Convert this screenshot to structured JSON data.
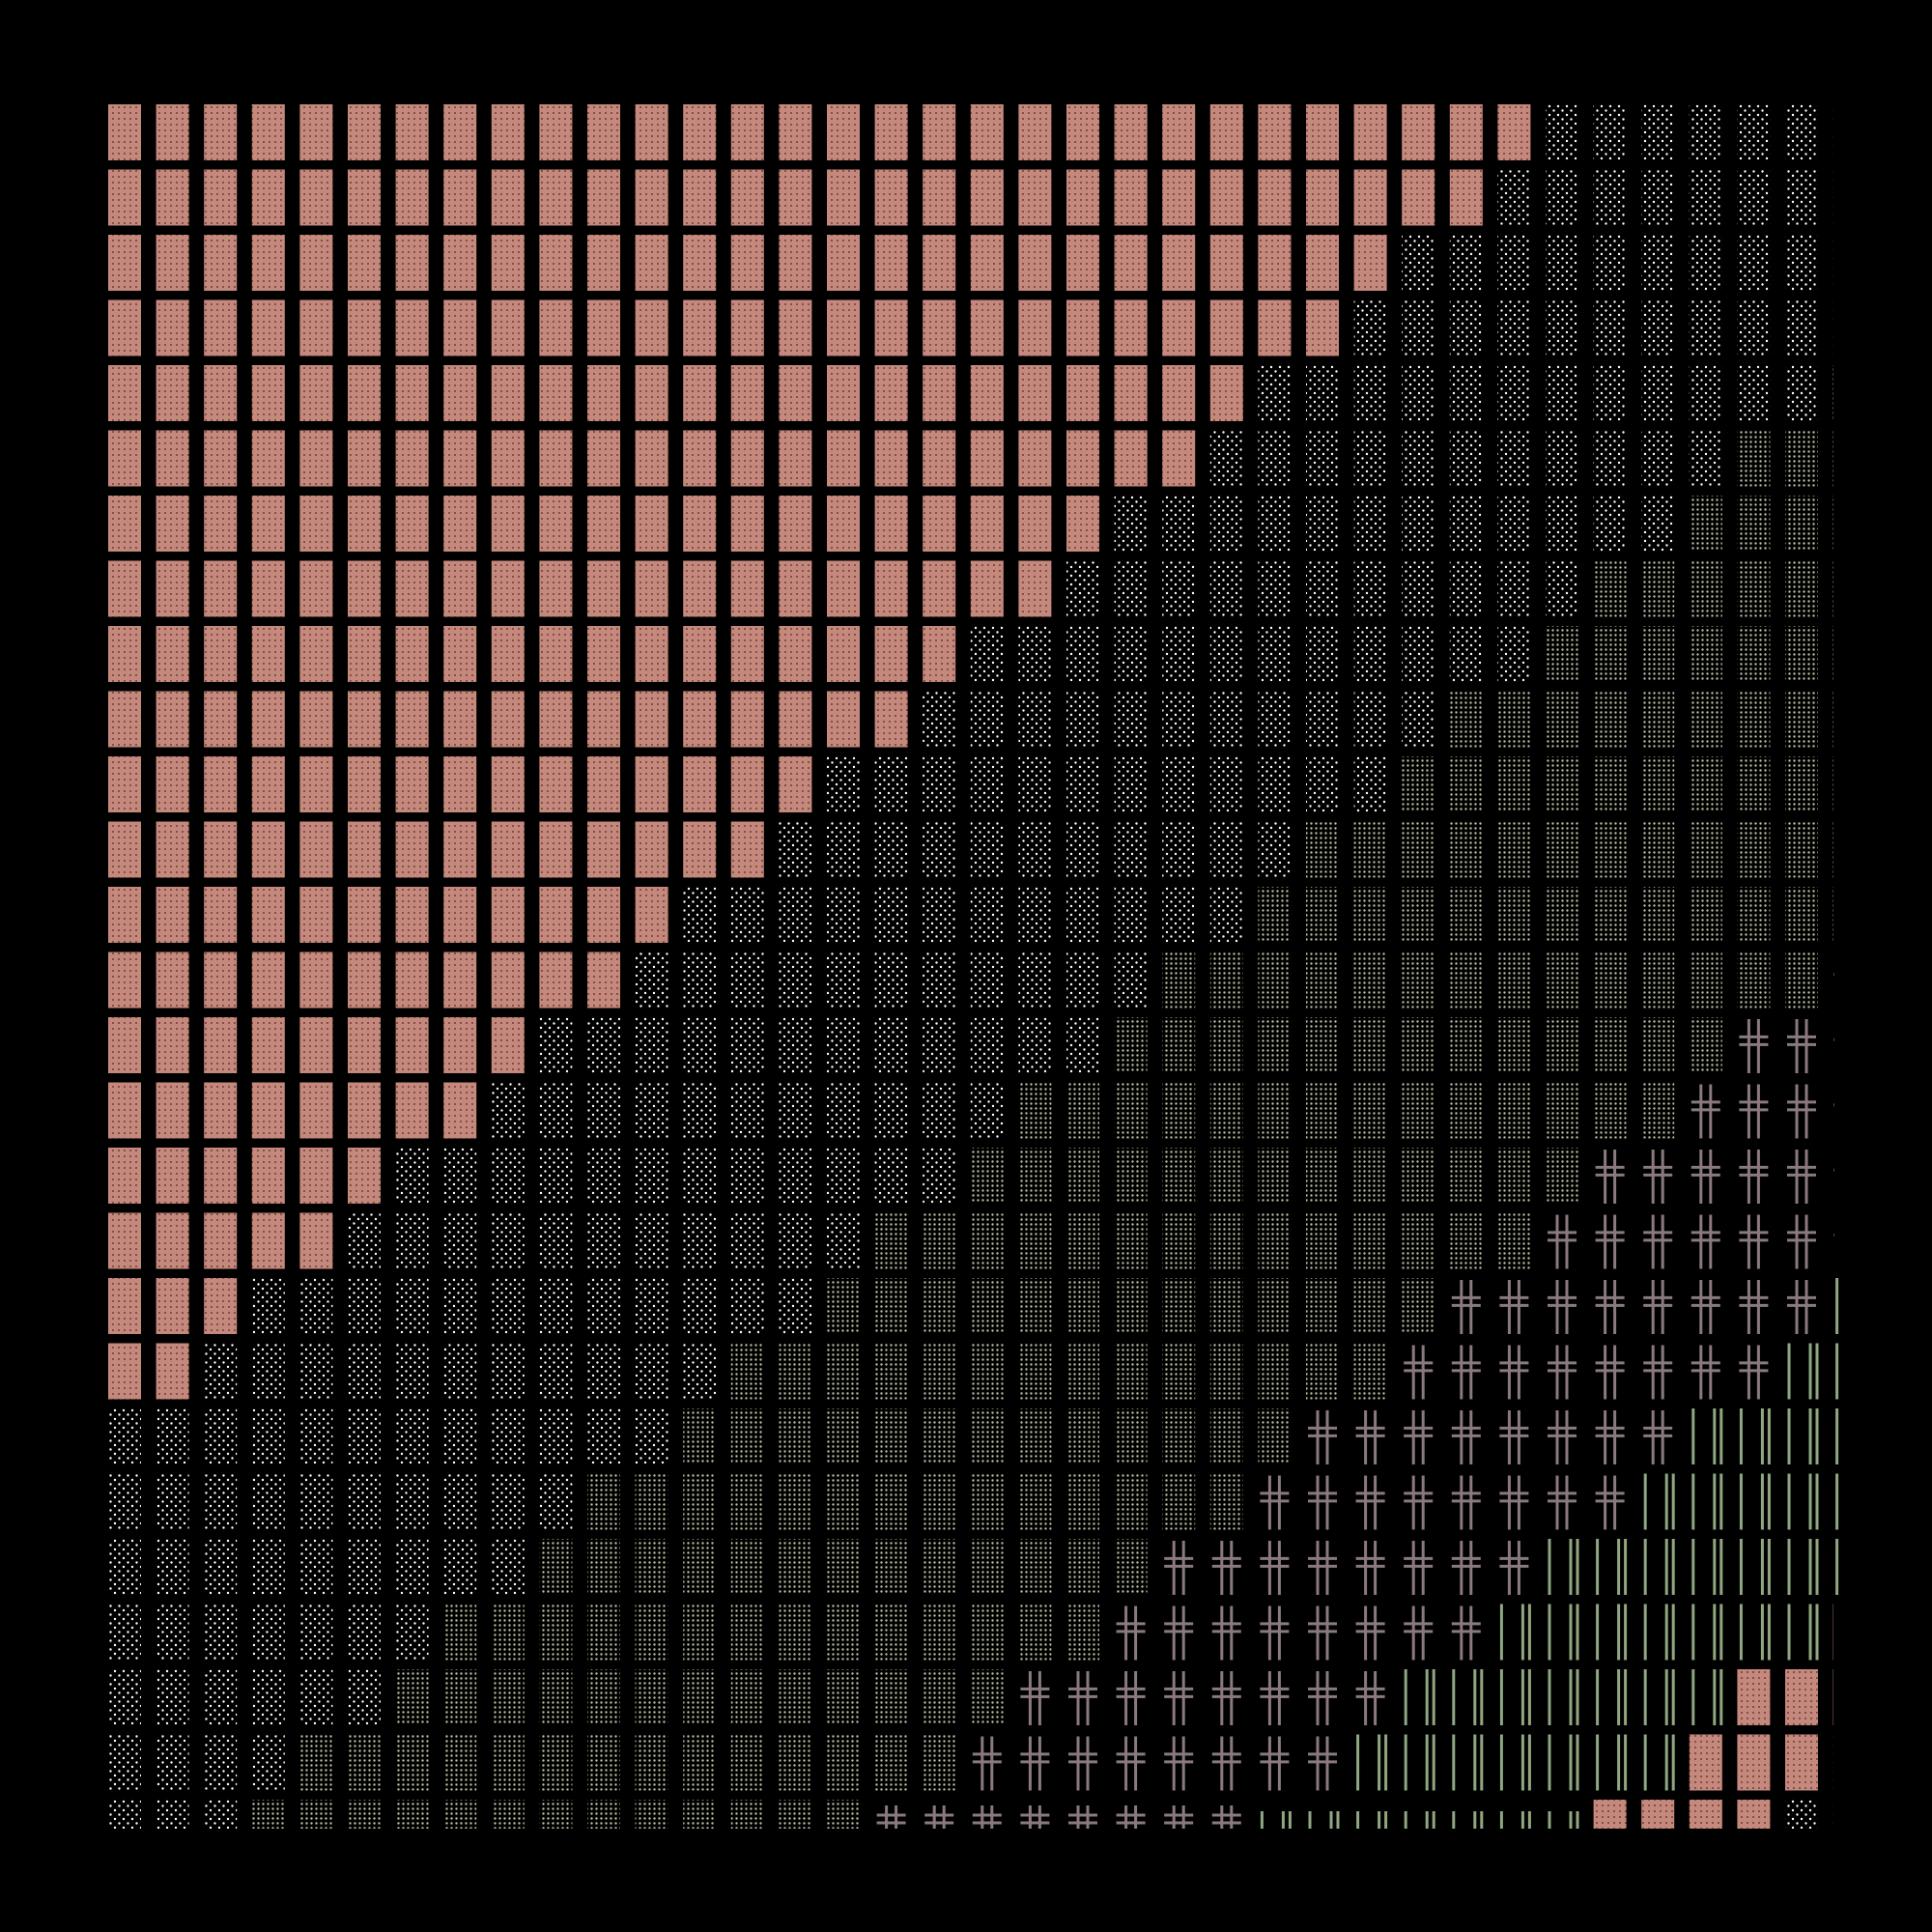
{
  "palette": {
    "background": "#000000",
    "salmon": "#c4887c",
    "salmon_dot": "#6e3e36",
    "dots": "#ffffff",
    "dense_dots": "#bdbda2",
    "cross": "#8a7a80",
    "green": "#8fa882"
  },
  "grid": {
    "rows": 27,
    "cols": 37
  },
  "tile_types": [
    "salmon-block",
    "sparse-dots",
    "dense-dots",
    "double-cross",
    "green-bars"
  ],
  "bands": {
    "salmon_top_row_count": 30,
    "salmon_boundary_slope": 1.5
  }
}
